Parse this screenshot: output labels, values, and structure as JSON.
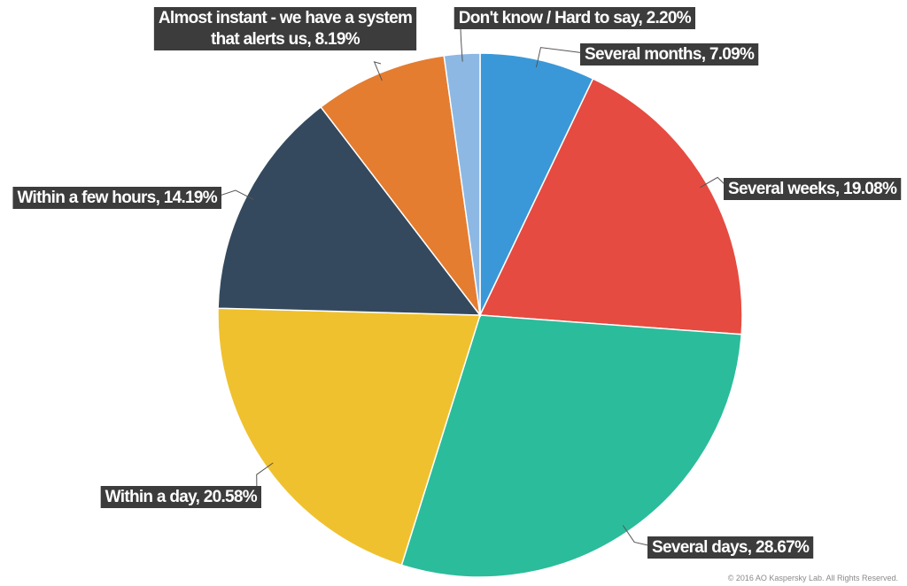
{
  "chart_data": {
    "type": "pie",
    "title": "",
    "start_angle_deg": 0,
    "direction": "clockwise",
    "slices": [
      {
        "label": "Several months",
        "value": 7.09,
        "display": "Several months, 7.09%",
        "color": "#3a98d8"
      },
      {
        "label": "Several weeks",
        "value": 19.08,
        "display": "Several weeks, 19.08%",
        "color": "#e54b41"
      },
      {
        "label": "Several days",
        "value": 28.67,
        "display": "Several days, 28.67%",
        "color": "#2bbc9b"
      },
      {
        "label": "Within a day",
        "value": 20.58,
        "display": "Within a day, 20.58%",
        "color": "#f0c12e"
      },
      {
        "label": "Within a few hours",
        "value": 14.19,
        "display": "Within a few hours, 14.19%",
        "color": "#34495e"
      },
      {
        "label": "Almost instant - we have a system that alerts us",
        "value": 8.19,
        "display": [
          "Almost instant - we have a system",
          "that alerts us, 8.19%"
        ],
        "color": "#e47d30"
      },
      {
        "label": "Don't know / Hard to say",
        "value": 2.2,
        "display": "Don't know / Hard to say, 2.20%",
        "color": "#8db8e4"
      }
    ]
  },
  "footer": {
    "copyright": "© 2016 AO Kaspersky Lab. All Rights Reserved."
  }
}
